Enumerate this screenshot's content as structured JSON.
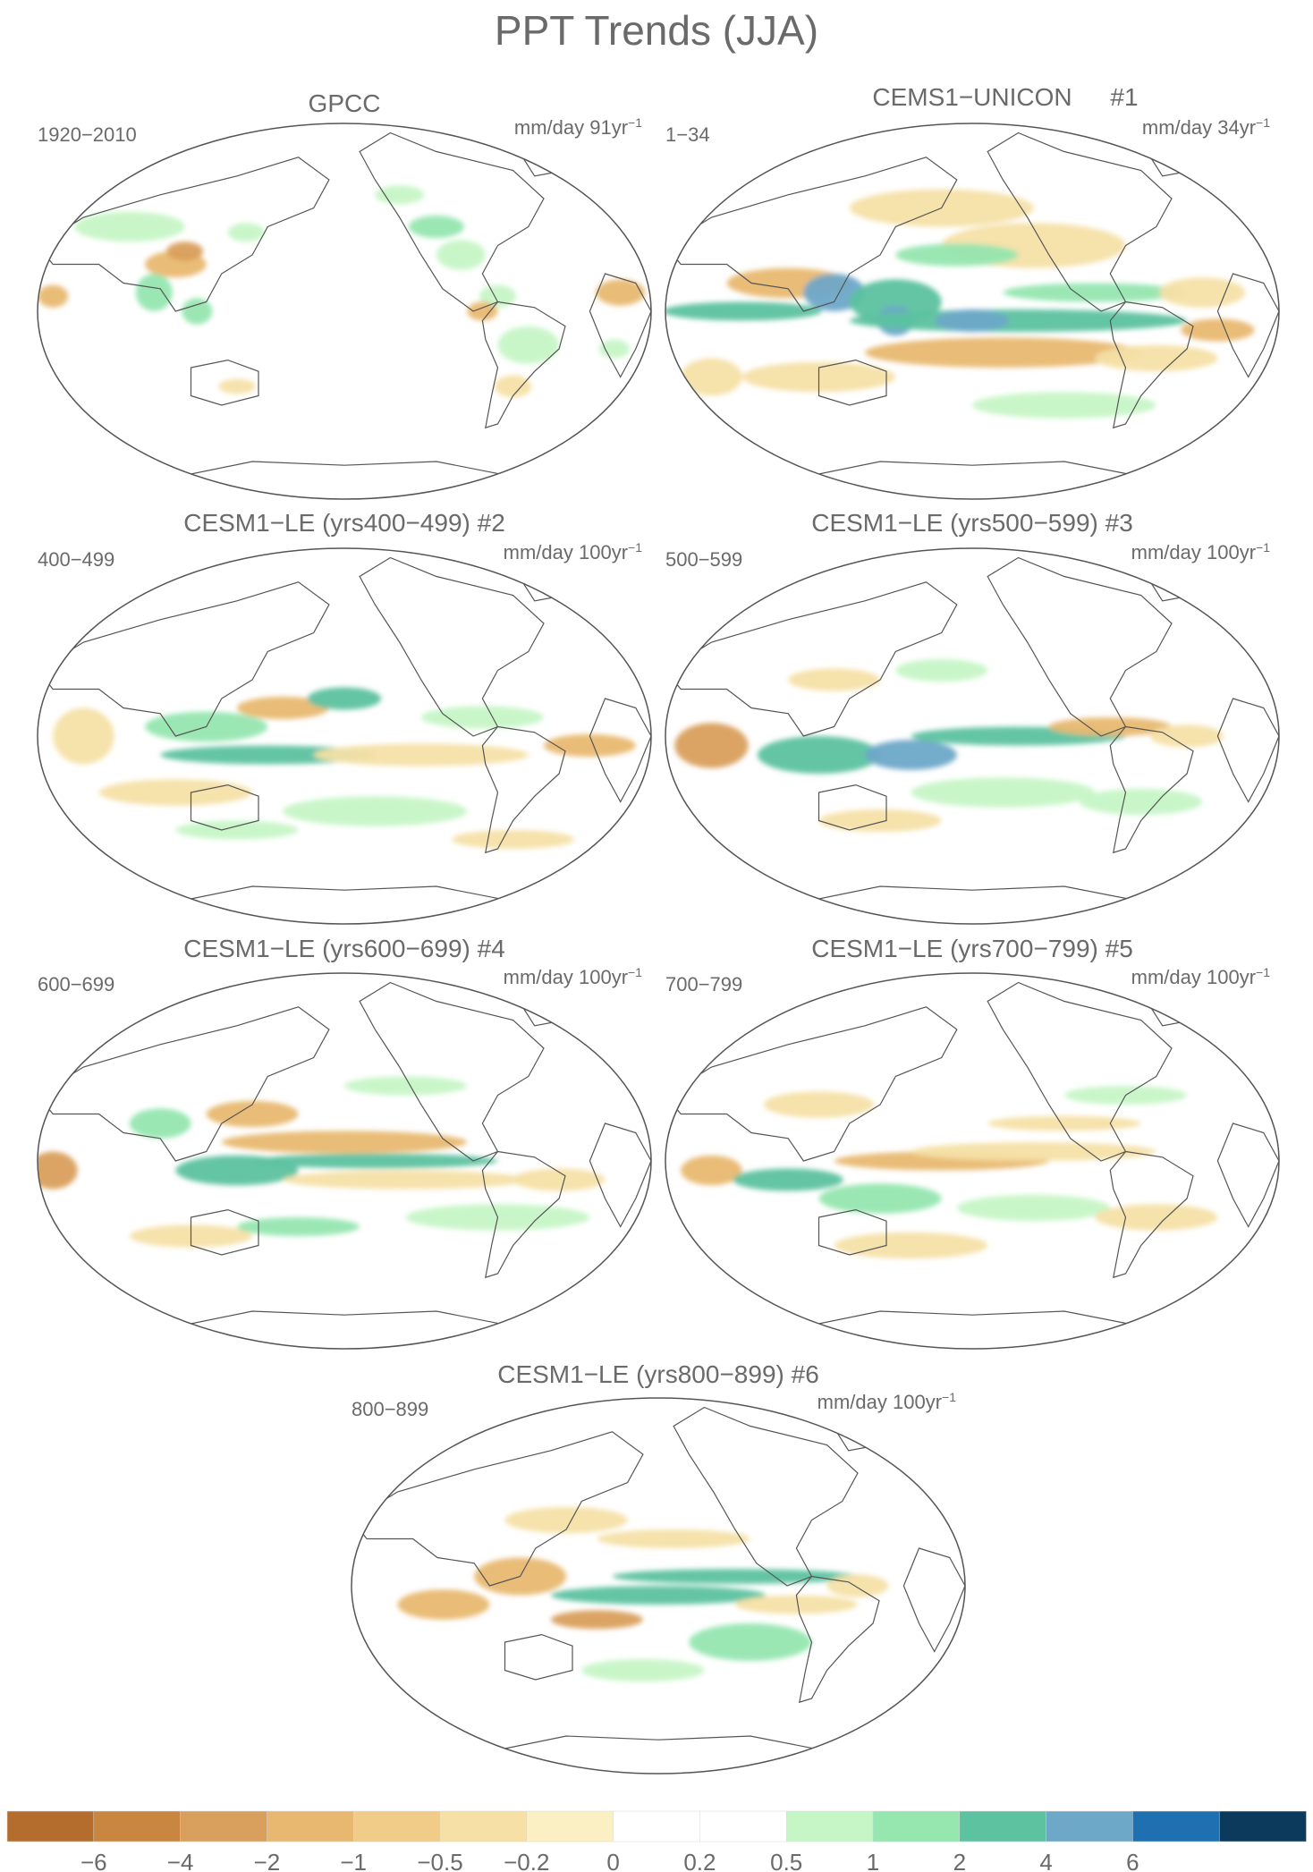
{
  "figure": {
    "title": "PPT Trends (JJA)"
  },
  "panels": [
    {
      "id": "gpcc",
      "title": "GPCC",
      "number": "",
      "years": "1920−2010",
      "units": "mm/day 91yr",
      "units_exp": "−1",
      "pattern": "obs"
    },
    {
      "id": "cems1",
      "title": "CEMS1−UNICON",
      "number": "#1",
      "years": "1−34",
      "units": "mm/day 34yr",
      "units_exp": "−1",
      "pattern": "strong"
    },
    {
      "id": "le2",
      "title": "CESM1−LE (yrs400−499)",
      "number": "#2",
      "years": "400−499",
      "units": "mm/day 100yr",
      "units_exp": "−1",
      "pattern": "a"
    },
    {
      "id": "le3",
      "title": "CESM1−LE (yrs500−599)",
      "number": "#3",
      "years": "500−599",
      "units": "mm/day 100yr",
      "units_exp": "−1",
      "pattern": "b"
    },
    {
      "id": "le4",
      "title": "CESM1−LE (yrs600−699)",
      "number": "#4",
      "years": "600−699",
      "units": "mm/day 100yr",
      "units_exp": "−1",
      "pattern": "c"
    },
    {
      "id": "le5",
      "title": "CESM1−LE (yrs700−799)",
      "number": "#5",
      "years": "700−799",
      "units": "mm/day 100yr",
      "units_exp": "−1",
      "pattern": "d"
    },
    {
      "id": "le6",
      "title": "CESM1−LE (yrs800−899)",
      "number": "#6",
      "years": "800−899",
      "units": "mm/day 100yr",
      "units_exp": "−1",
      "pattern": "e"
    }
  ],
  "colorbar": {
    "colors": [
      "#b56d2d",
      "#c98640",
      "#d99f5c",
      "#e8b870",
      "#f0cc88",
      "#f6e0a6",
      "#fbf0c4",
      "#ffffff",
      "#ffffff",
      "#c6f5c6",
      "#96e6b0",
      "#5cc2a0",
      "#6ea8c8",
      "#1e70b0",
      "#0b3a5c"
    ],
    "labels": [
      "−6",
      "−4",
      "−2",
      "−1",
      "−0.5",
      "−0.2",
      "0",
      "0.2",
      "0.5",
      "1",
      "2",
      "4",
      "6"
    ]
  }
}
